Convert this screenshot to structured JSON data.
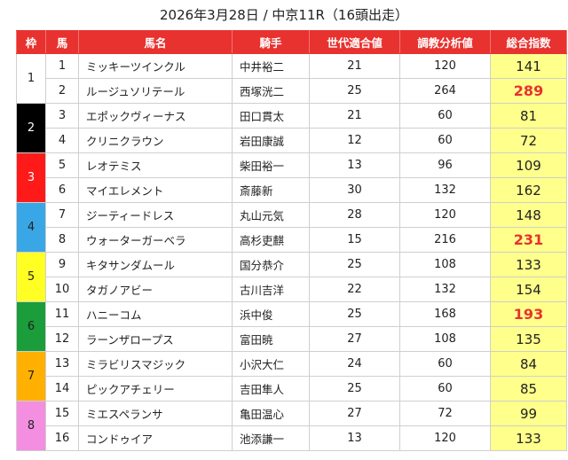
{
  "title": "2026年3月28日 / 中京11R（16頭出走）",
  "headers": {
    "waku": "枠",
    "uma": "馬",
    "horse_name": "馬名",
    "jockey": "騎手",
    "generation_score": "世代適合値",
    "training_score": "調教分析値",
    "total_score": "総合指数"
  },
  "waku_colors": [
    "#ffffff",
    "#000000",
    "#ff1a1a",
    "#39a7e6",
    "#ffff24",
    "#1a9d3a",
    "#ffb000",
    "#f48ee0"
  ],
  "waku_text_colors": [
    "#222222",
    "#ffffff",
    "#ffffff",
    "#222222",
    "#222222",
    "#222222",
    "#222222",
    "#222222"
  ],
  "rows": [
    {
      "waku": "1",
      "num": "1",
      "horse": "ミッキーツインクル",
      "jockey": "中井裕二",
      "gen": "21",
      "train": "120",
      "total": "141",
      "top": false
    },
    {
      "waku": "1",
      "num": "2",
      "horse": "ルージュソリテール",
      "jockey": "西塚洸二",
      "gen": "25",
      "train": "264",
      "total": "289",
      "top": true
    },
    {
      "waku": "2",
      "num": "3",
      "horse": "エポックヴィーナス",
      "jockey": "田口貫太",
      "gen": "21",
      "train": "60",
      "total": "81",
      "top": false
    },
    {
      "waku": "2",
      "num": "4",
      "horse": "クリニクラウン",
      "jockey": "岩田康誠",
      "gen": "12",
      "train": "60",
      "total": "72",
      "top": false
    },
    {
      "waku": "3",
      "num": "5",
      "horse": "レオテミス",
      "jockey": "柴田裕一",
      "gen": "13",
      "train": "96",
      "total": "109",
      "top": false
    },
    {
      "waku": "3",
      "num": "6",
      "horse": "マイエレメント",
      "jockey": "斎藤新",
      "gen": "30",
      "train": "132",
      "total": "162",
      "top": false
    },
    {
      "waku": "4",
      "num": "7",
      "horse": "ジーティードレス",
      "jockey": "丸山元気",
      "gen": "28",
      "train": "120",
      "total": "148",
      "top": false
    },
    {
      "waku": "4",
      "num": "8",
      "horse": "ウォーターガーベラ",
      "jockey": "高杉吏麒",
      "gen": "15",
      "train": "216",
      "total": "231",
      "top": true
    },
    {
      "waku": "5",
      "num": "9",
      "horse": "キタサンダムール",
      "jockey": "国分恭介",
      "gen": "25",
      "train": "108",
      "total": "133",
      "top": false
    },
    {
      "waku": "5",
      "num": "10",
      "horse": "タガノアビー",
      "jockey": "古川吉洋",
      "gen": "22",
      "train": "132",
      "total": "154",
      "top": false
    },
    {
      "waku": "6",
      "num": "11",
      "horse": "ハニーコム",
      "jockey": "浜中俊",
      "gen": "25",
      "train": "168",
      "total": "193",
      "top": true
    },
    {
      "waku": "6",
      "num": "12",
      "horse": "ラーンザロープス",
      "jockey": "富田暁",
      "gen": "27",
      "train": "108",
      "total": "135",
      "top": false
    },
    {
      "waku": "7",
      "num": "13",
      "horse": "ミラビリスマジック",
      "jockey": "小沢大仁",
      "gen": "24",
      "train": "60",
      "total": "84",
      "top": false
    },
    {
      "waku": "7",
      "num": "14",
      "horse": "ピックアチェリー",
      "jockey": "吉田隼人",
      "gen": "25",
      "train": "60",
      "total": "85",
      "top": false
    },
    {
      "waku": "8",
      "num": "15",
      "horse": "ミエスペランサ",
      "jockey": "亀田温心",
      "gen": "27",
      "train": "72",
      "total": "99",
      "top": false
    },
    {
      "waku": "8",
      "num": "16",
      "horse": "コンドゥイア",
      "jockey": "池添謙一",
      "gen": "13",
      "train": "120",
      "total": "133",
      "top": false
    }
  ]
}
